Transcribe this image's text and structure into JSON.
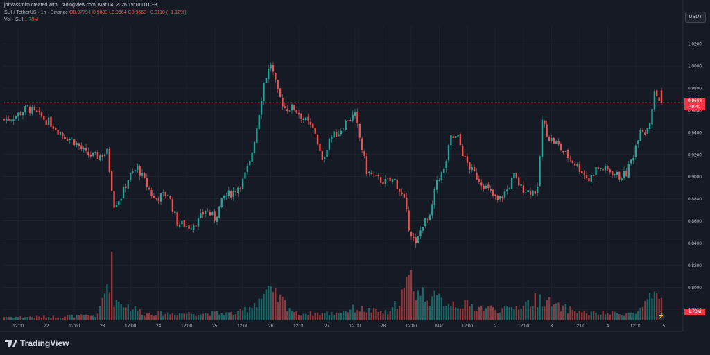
{
  "header": {
    "creator": "jobvassmim created with TradingView.com, Mar 04, 2026 19:10 UTC+3",
    "symbol": "SUI / TetherUS · 1h · Binance",
    "open": "O0.9779",
    "high": "H0.9833",
    "low": "L0.9664",
    "close": "C0.9668",
    "change": "−0.0110 (−1.12%)",
    "vol_label": "Vol · SUI",
    "vol_value": "1.78M"
  },
  "toolbar": {
    "currency": "USDT"
  },
  "price_badge": {
    "price": "0.9668",
    "countdown": "49:40"
  },
  "vol_badge": "1.78M",
  "brand": "TradingView",
  "colors": {
    "up": "#26a69a",
    "down": "#ef5350",
    "background": "#161a25",
    "grid": "#242733",
    "text": "#b2b5be"
  },
  "chart_data": {
    "type": "candlestick",
    "symbol": "SUI/USDT",
    "interval": "1h",
    "last_price": 0.9668,
    "ylim": [
      0.772,
      1.032
    ],
    "y_ticks": [
      0.78,
      0.8,
      0.82,
      0.84,
      0.86,
      0.88,
      0.9,
      0.92,
      0.94,
      0.96,
      0.98,
      1.0,
      1.02
    ],
    "y_tick_labels": [
      "0.7800",
      "0.8000",
      "0.8200",
      "0.8400",
      "0.8600",
      "0.8800",
      "0.9000",
      "0.9200",
      "0.9400",
      "0.9600",
      "0.9800",
      "1.0000",
      "1.0200"
    ],
    "x_labels": [
      "12:00",
      "22",
      "12:00",
      "23",
      "12:00",
      "24",
      "12:00",
      "25",
      "12:00",
      "26",
      "12:00",
      "27",
      "12:00",
      "28",
      "12:00",
      "Mar",
      "12:00",
      "2",
      "12:00",
      "3",
      "12:00",
      "4",
      "12:00",
      "5"
    ],
    "x_label_index": [
      6,
      18,
      30,
      42,
      54,
      66,
      78,
      90,
      102,
      114,
      126,
      138,
      150,
      162,
      174,
      186,
      198,
      210,
      222,
      234,
      246,
      258,
      270,
      282
    ],
    "candle_count": 282,
    "close_anchors": [
      [
        0,
        0.951
      ],
      [
        5,
        0.955
      ],
      [
        10,
        0.962
      ],
      [
        15,
        0.955
      ],
      [
        20,
        0.948
      ],
      [
        25,
        0.938
      ],
      [
        30,
        0.932
      ],
      [
        35,
        0.92
      ],
      [
        40,
        0.918
      ],
      [
        44,
        0.922
      ],
      [
        47,
        0.875
      ],
      [
        50,
        0.882
      ],
      [
        53,
        0.898
      ],
      [
        57,
        0.908
      ],
      [
        61,
        0.892
      ],
      [
        64,
        0.88
      ],
      [
        67,
        0.882
      ],
      [
        70,
        0.885
      ],
      [
        74,
        0.858
      ],
      [
        79,
        0.855
      ],
      [
        83,
        0.86
      ],
      [
        86,
        0.87
      ],
      [
        90,
        0.862
      ],
      [
        94,
        0.882
      ],
      [
        98,
        0.886
      ],
      [
        102,
        0.896
      ],
      [
        105,
        0.912
      ],
      [
        108,
        0.945
      ],
      [
        111,
        0.985
      ],
      [
        114,
        1.002
      ],
      [
        117,
        0.975
      ],
      [
        120,
        0.962
      ],
      [
        124,
        0.962
      ],
      [
        129,
        0.95
      ],
      [
        133,
        0.94
      ],
      [
        136,
        0.912
      ],
      [
        139,
        0.935
      ],
      [
        143,
        0.94
      ],
      [
        147,
        0.952
      ],
      [
        150,
        0.955
      ],
      [
        152,
        0.935
      ],
      [
        155,
        0.905
      ],
      [
        159,
        0.898
      ],
      [
        163,
        0.895
      ],
      [
        167,
        0.897
      ],
      [
        171,
        0.878
      ],
      [
        173,
        0.855
      ],
      [
        176,
        0.837
      ],
      [
        179,
        0.858
      ],
      [
        182,
        0.862
      ],
      [
        185,
        0.897
      ],
      [
        188,
        0.905
      ],
      [
        191,
        0.935
      ],
      [
        194,
        0.935
      ],
      [
        197,
        0.915
      ],
      [
        200,
        0.905
      ],
      [
        204,
        0.895
      ],
      [
        208,
        0.885
      ],
      [
        211,
        0.878
      ],
      [
        215,
        0.888
      ],
      [
        218,
        0.9
      ],
      [
        221,
        0.89
      ],
      [
        224,
        0.887
      ],
      [
        228,
        0.887
      ],
      [
        230,
        0.95
      ],
      [
        233,
        0.935
      ],
      [
        236,
        0.93
      ],
      [
        240,
        0.92
      ],
      [
        244,
        0.912
      ],
      [
        247,
        0.905
      ],
      [
        250,
        0.897
      ],
      [
        253,
        0.907
      ],
      [
        256,
        0.907
      ],
      [
        259,
        0.905
      ],
      [
        263,
        0.9
      ],
      [
        266,
        0.903
      ],
      [
        269,
        0.92
      ],
      [
        272,
        0.945
      ],
      [
        274,
        0.94
      ],
      [
        276,
        0.95
      ],
      [
        278,
        0.975
      ],
      [
        281,
        0.9668
      ]
    ],
    "volume_anchors": [
      [
        0,
        0.05
      ],
      [
        20,
        0.05
      ],
      [
        40,
        0.07
      ],
      [
        46,
        0.75
      ],
      [
        47,
        0.3
      ],
      [
        60,
        0.1
      ],
      [
        80,
        0.1
      ],
      [
        100,
        0.1
      ],
      [
        106,
        0.22
      ],
      [
        112,
        0.4
      ],
      [
        118,
        0.3
      ],
      [
        125,
        0.1
      ],
      [
        140,
        0.1
      ],
      [
        150,
        0.17
      ],
      [
        165,
        0.1
      ],
      [
        174,
        0.6
      ],
      [
        176,
        0.42
      ],
      [
        185,
        0.3
      ],
      [
        200,
        0.2
      ],
      [
        215,
        0.15
      ],
      [
        230,
        0.32
      ],
      [
        235,
        0.2
      ],
      [
        250,
        0.1
      ],
      [
        270,
        0.1
      ],
      [
        277,
        0.32
      ],
      [
        281,
        0.25
      ]
    ],
    "volume_max": 1.78
  }
}
